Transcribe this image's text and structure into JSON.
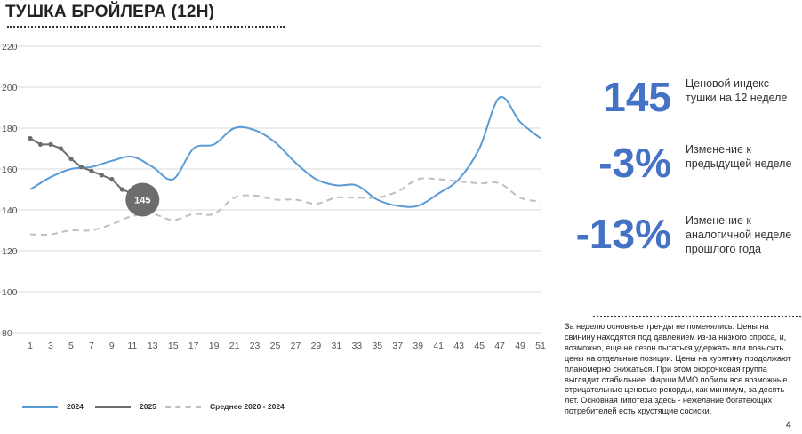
{
  "title": "ТУШКА БРОЙЛЕРА (12Н)",
  "stats": [
    {
      "value": "145",
      "description": "Ценовой индекс тушки на 12 неделе"
    },
    {
      "value": "-3%",
      "description": "Изменение к предыдущей неделе"
    },
    {
      "value": "-13%",
      "description": "Изменение к аналогичной неделе прошлого года"
    }
  ],
  "note": "За неделю основные тренды не поменялись. Цены на свинину находятся под давлением из-за низкого спроса, и, возможно, еще не сезон пытаться удержать или повысить цены на отдельные позиции. Цены на курятину продолжают планомерно снижаться. При этом окорочковая группа выглядит стабильнее. Фарши ММО побили все возможные отрицательные ценовые рекорды, как минимум, за десять лет. Основная гипотеза здесь - нежелание богатеющих потребителей есть хрустящие сосиски.",
  "page_number": "4",
  "colors": {
    "s2024": "#5b9bd5",
    "s2025": "#6d6d6d",
    "avg": "#bfbfbf",
    "accent": "#4472c4"
  },
  "chart_data": {
    "type": "line",
    "title": "ТУШКА БРОЙЛЕРА (12Н)",
    "x_ticks": [
      1,
      3,
      5,
      7,
      9,
      11,
      13,
      15,
      17,
      19,
      21,
      23,
      25,
      27,
      29,
      31,
      33,
      35,
      37,
      39,
      41,
      43,
      45,
      47,
      49,
      51
    ],
    "y_ticks": [
      80,
      100,
      120,
      140,
      160,
      180,
      200,
      220
    ],
    "xlim": [
      1,
      51
    ],
    "ylim": [
      80,
      220
    ],
    "grid": true,
    "legend_position": "bottom-left",
    "series": [
      {
        "name": "2024",
        "style": "solid",
        "x": [
          1,
          3,
          5,
          7,
          9,
          11,
          13,
          15,
          17,
          19,
          21,
          23,
          25,
          27,
          29,
          31,
          33,
          35,
          37,
          39,
          41,
          43,
          45,
          47,
          49,
          51
        ],
        "values": [
          150,
          156,
          160,
          161,
          164,
          166,
          161,
          155,
          170,
          172,
          180,
          179,
          173,
          163,
          155,
          152,
          152,
          145,
          142,
          142,
          148,
          155,
          170,
          195,
          183,
          175
        ]
      },
      {
        "name": "2025",
        "style": "solid-markers",
        "x": [
          1,
          2,
          3,
          4,
          5,
          6,
          7,
          8,
          9,
          10,
          11,
          12
        ],
        "values": [
          175,
          172,
          172,
          170,
          165,
          161,
          159,
          157,
          155,
          150,
          148,
          145
        ]
      },
      {
        "name": "Среднее 2020 - 2024",
        "style": "dashed",
        "x": [
          1,
          3,
          5,
          7,
          9,
          11,
          13,
          15,
          17,
          19,
          21,
          23,
          25,
          27,
          29,
          31,
          33,
          35,
          37,
          39,
          41,
          43,
          45,
          47,
          49,
          51
        ],
        "values": [
          128,
          128,
          130,
          130,
          133,
          137,
          138,
          135,
          138,
          138,
          146,
          147,
          145,
          145,
          143,
          146,
          146,
          146,
          149,
          155,
          155,
          154,
          153,
          153,
          146,
          144
        ]
      }
    ],
    "annotations": [
      {
        "x": 12,
        "y": 145,
        "label": "145"
      }
    ]
  }
}
